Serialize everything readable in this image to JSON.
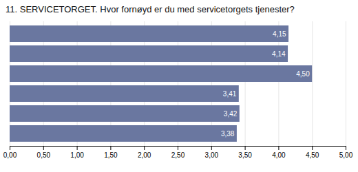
{
  "chart_data": {
    "type": "bar",
    "orientation": "horizontal",
    "title": "11. SERVICETORGET. Hvor fornøyd er du med servicetorgets tjenester?",
    "categories": [
      null,
      null,
      null,
      null,
      null,
      null
    ],
    "values": [
      4.15,
      4.14,
      4.5,
      3.41,
      3.42,
      3.38
    ],
    "value_labels": [
      "4,15",
      "4,14",
      "4,50",
      "3,41",
      "3,42",
      "3,38"
    ],
    "data_labels": true,
    "color": "#6a77a0",
    "xlim": [
      0,
      5.0
    ],
    "xticks": [
      {
        "value": 0.0,
        "label": "0,00"
      },
      {
        "value": 0.5,
        "label": "0,50"
      },
      {
        "value": 1.0,
        "label": "1,00"
      },
      {
        "value": 1.5,
        "label": "1,50"
      },
      {
        "value": 2.0,
        "label": "2,00"
      },
      {
        "value": 2.5,
        "label": "2,50"
      },
      {
        "value": 3.0,
        "label": "3,00"
      },
      {
        "value": 3.5,
        "label": "3,50"
      },
      {
        "value": 4.0,
        "label": "4,00"
      },
      {
        "value": 4.5,
        "label": "4,50"
      },
      {
        "value": 5.0,
        "label": "5,00"
      }
    ],
    "grid": true,
    "tick_labels": "x"
  }
}
